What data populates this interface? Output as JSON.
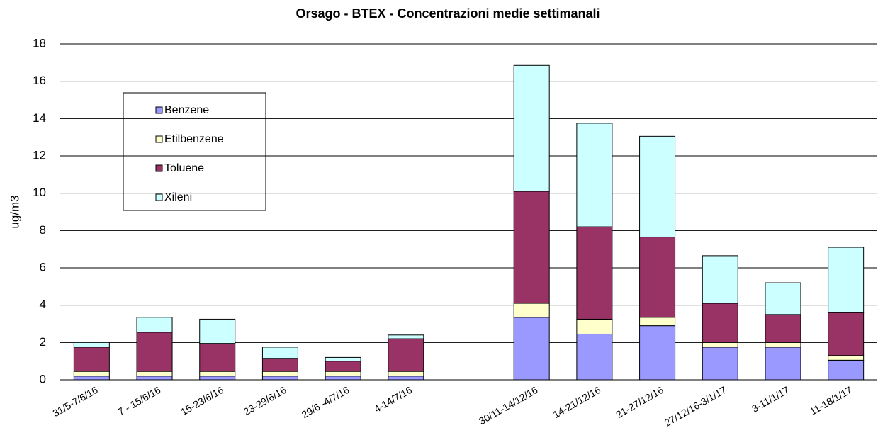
{
  "chart_data": {
    "type": "stacked_bar",
    "title": "Orsago - BTEX - Concentrazioni medie settimanali",
    "y_label": "ug/m3",
    "categories": [
      "31/5-7/6/16",
      "7 - 15/6/16",
      "15-23/6/16",
      "23-29/6/16",
      "29/6 -4/7/16",
      "4-14/7/16",
      null,
      "30/11-14/12/16",
      "14-21/12/16",
      "21-27/12/16",
      "27/12/16-3/1/17",
      "3-11/1/17",
      "11-18/1/17"
    ],
    "series": [
      {
        "name": "Benzene",
        "color": "#9999ff",
        "values": [
          0.2,
          0.2,
          0.2,
          0.2,
          0.2,
          0.2,
          null,
          3.35,
          2.45,
          2.9,
          1.75,
          1.75,
          1.05
        ]
      },
      {
        "name": "Etilbenzene",
        "color": "#ffffcc",
        "values": [
          0.25,
          0.25,
          0.25,
          0.25,
          0.25,
          0.25,
          null,
          0.75,
          0.8,
          0.45,
          0.25,
          0.25,
          0.25
        ]
      },
      {
        "name": "Toluene",
        "color": "#993366",
        "values": [
          1.3,
          2.1,
          1.5,
          0.7,
          0.55,
          1.75,
          null,
          6.0,
          4.95,
          4.3,
          2.1,
          1.5,
          2.3
        ]
      },
      {
        "name": "Xileni",
        "color": "#ccffff",
        "values": [
          0.25,
          0.8,
          1.3,
          0.6,
          0.2,
          0.2,
          null,
          6.75,
          5.55,
          5.4,
          2.55,
          1.7,
          3.5
        ]
      }
    ],
    "ylim": [
      0,
      18
    ],
    "yticks": [
      0,
      2,
      4,
      6,
      8,
      10,
      12,
      14,
      16,
      18
    ],
    "grid": true
  }
}
